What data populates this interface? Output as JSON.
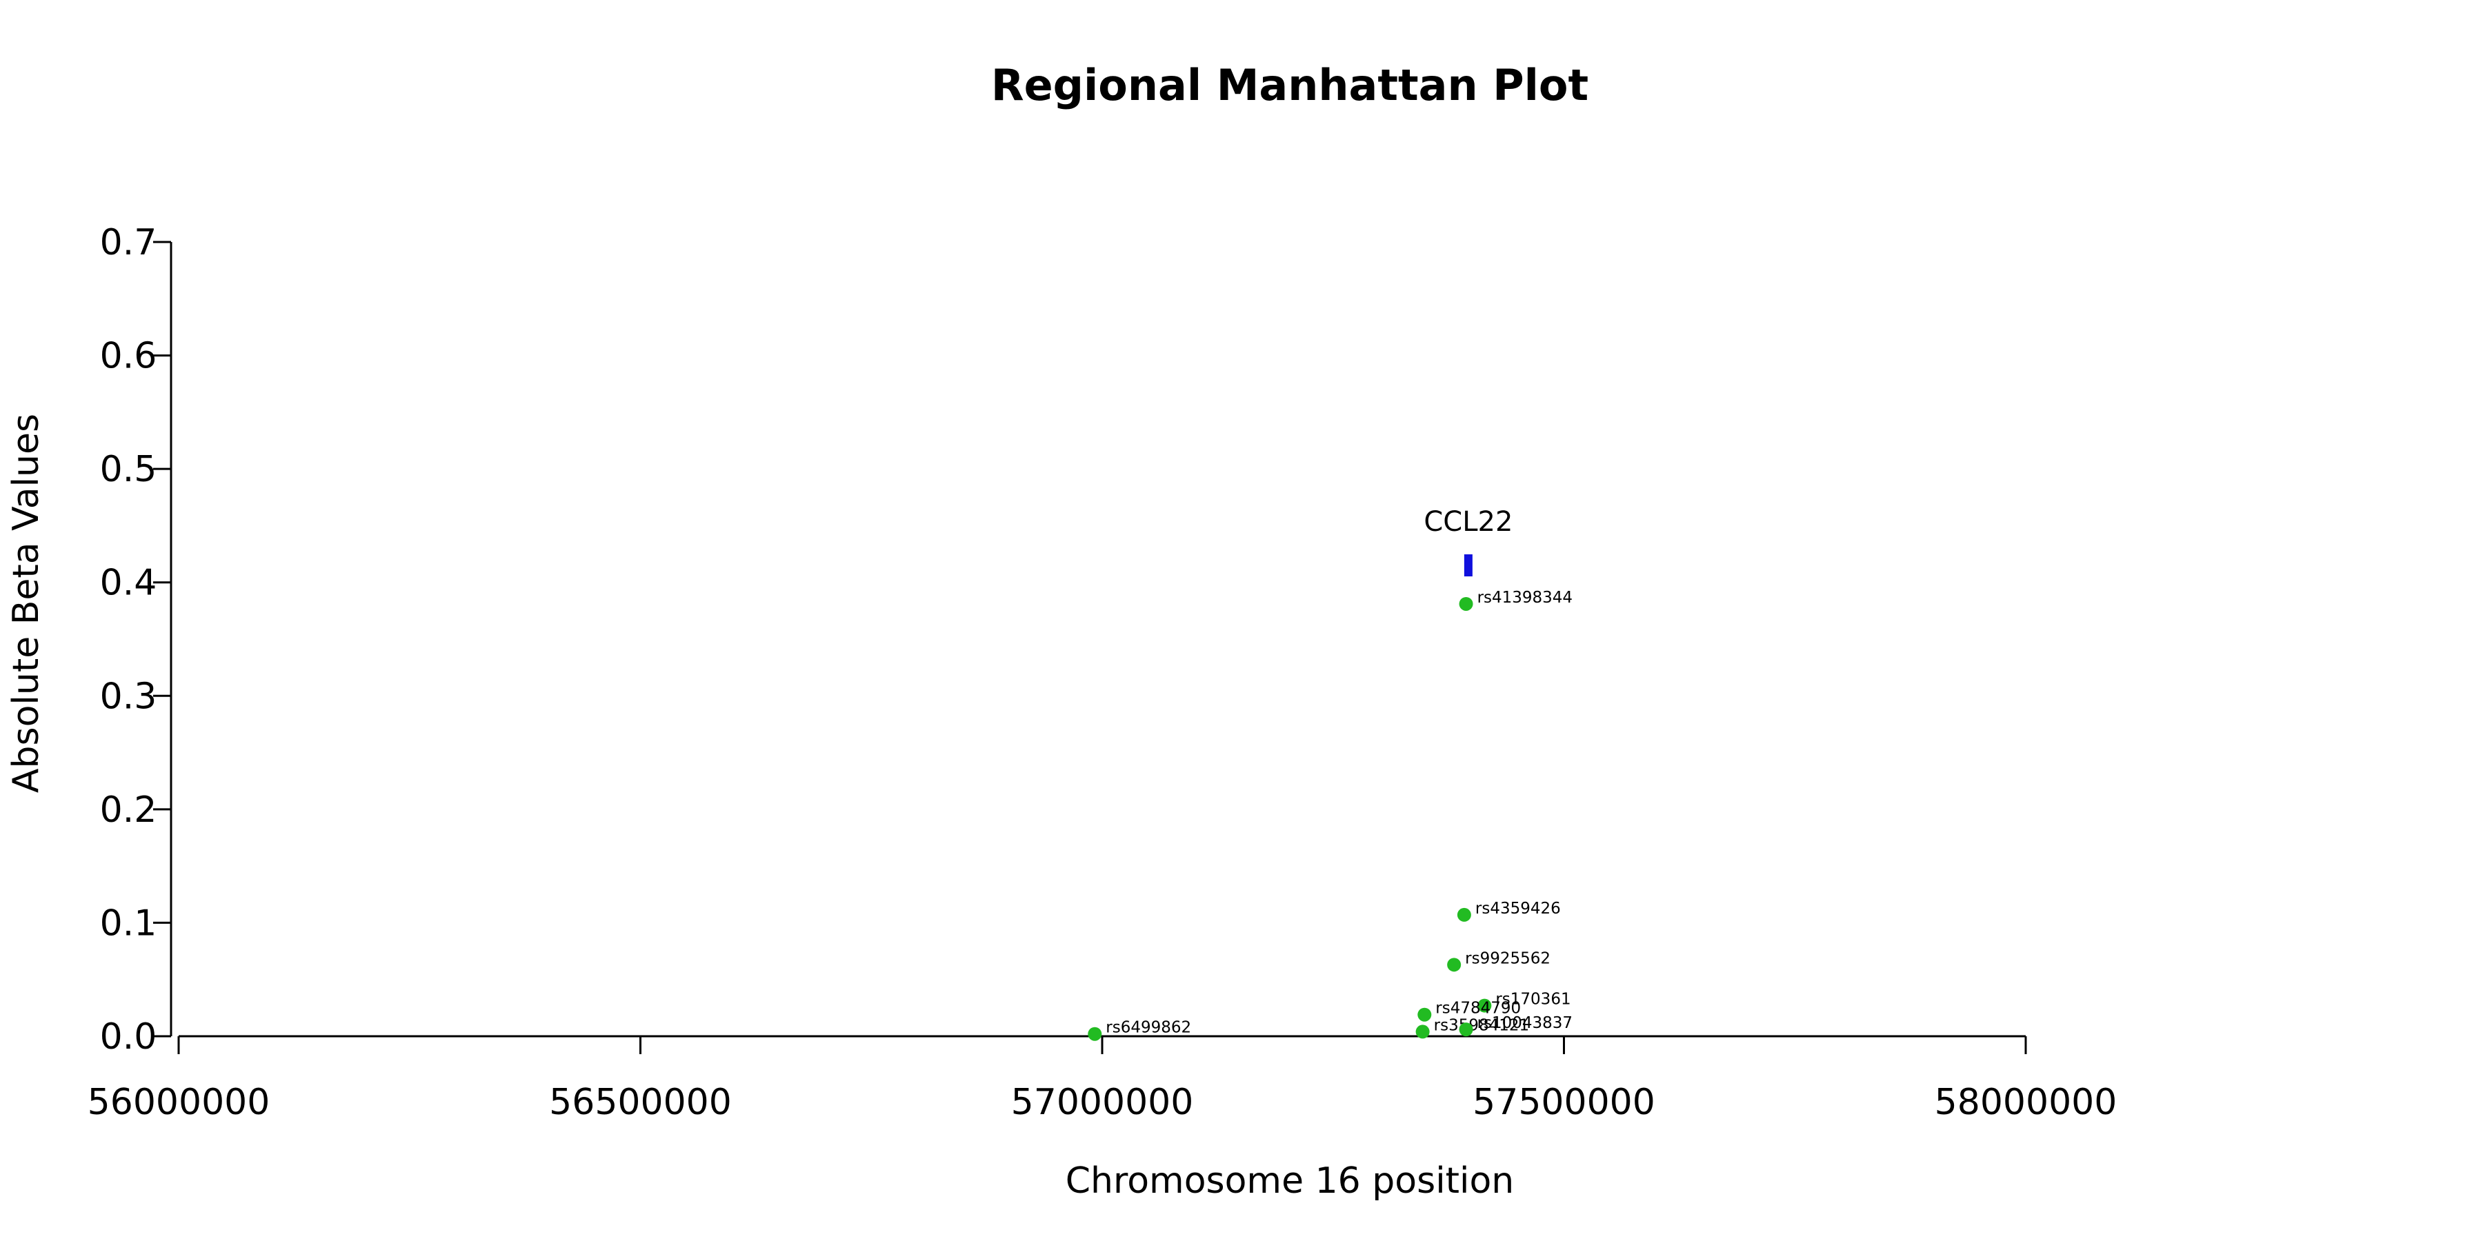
{
  "chart_data": {
    "type": "scatter",
    "title": "Regional Manhattan Plot",
    "xlabel": "Chromosome 16 position",
    "ylabel": "Absolute Beta Values",
    "xlim": [
      56000000,
      58000000
    ],
    "ylim": [
      0,
      0.7
    ],
    "x_ticks": [
      56000000,
      56500000,
      57000000,
      57500000,
      58000000
    ],
    "x_tick_labels": [
      "56000000",
      "56500000",
      "57000000",
      "57500000",
      "58000000"
    ],
    "y_ticks": [
      0.0,
      0.1,
      0.2,
      0.3,
      0.4,
      0.5,
      0.6,
      0.7
    ],
    "y_tick_labels": [
      "0.0",
      "0.1",
      "0.2",
      "0.3",
      "0.4",
      "0.5",
      "0.6",
      "0.7"
    ],
    "grid": false,
    "point_color": "#22bb22",
    "gene_color": "#1010dd",
    "points": [
      {
        "label": "rs41398344",
        "x": 57394000,
        "y": 0.381
      },
      {
        "label": "rs4359426",
        "x": 57392000,
        "y": 0.107
      },
      {
        "label": "rs9925562",
        "x": 57381000,
        "y": 0.063
      },
      {
        "label": "rs170361",
        "x": 57414000,
        "y": 0.027
      },
      {
        "label": "rs4784790",
        "x": 57349000,
        "y": 0.019
      },
      {
        "label": "rs35984121",
        "x": 57347000,
        "y": 0.004
      },
      {
        "label": "rs10043837",
        "x": 57394000,
        "y": 0.006
      },
      {
        "label": "rs6499862",
        "x": 56992000,
        "y": 0.002
      }
    ],
    "genes": [
      {
        "name": "CCL22",
        "start": 57392000,
        "end": 57400000,
        "y": 0.415
      }
    ]
  }
}
